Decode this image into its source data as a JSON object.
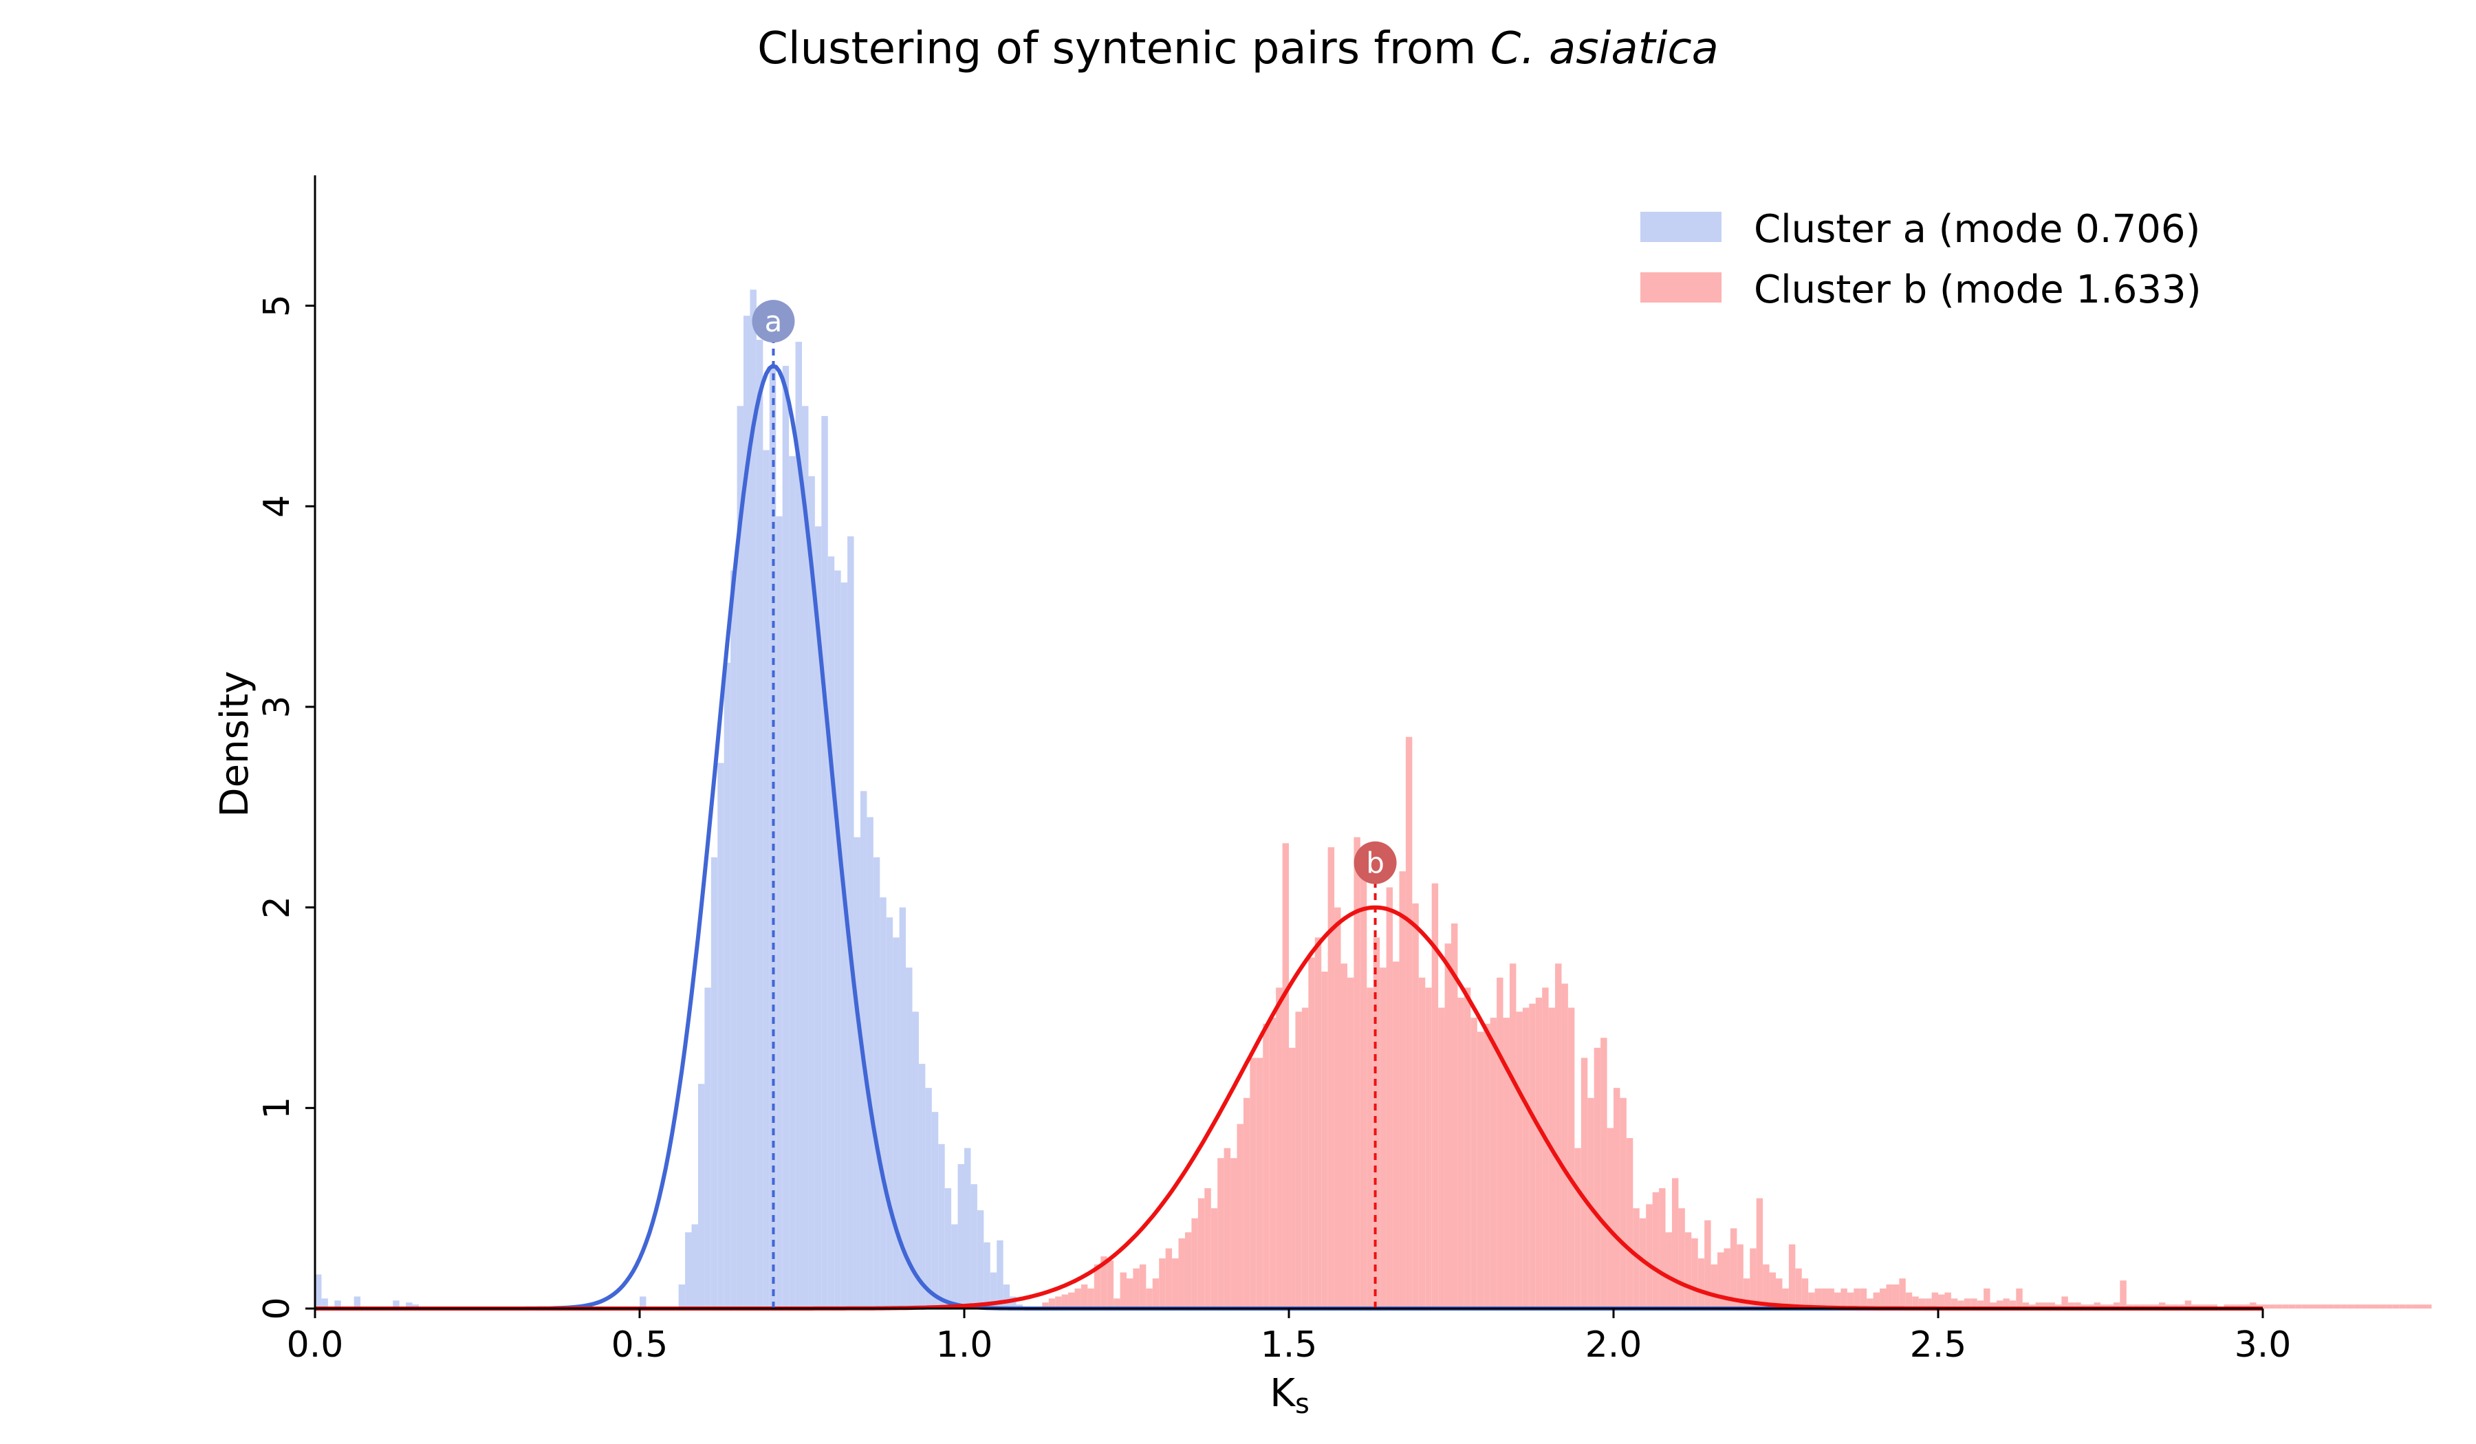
{
  "chart_data": {
    "type": "bar",
    "title": "Clustering of syntenic pairs from ",
    "title_species": "C.  asiatica",
    "xlabel_main": "K",
    "xlabel_sub": "s",
    "ylabel": "Density",
    "xlim": [
      0.0,
      3.0
    ],
    "ylim": [
      0,
      5.65
    ],
    "xticks": [
      "0.0",
      "0.5",
      "1.0",
      "1.5",
      "2.0",
      "2.5",
      "3.0"
    ],
    "yticks": [
      "0",
      "1",
      "2",
      "3",
      "4",
      "5"
    ],
    "grid": false,
    "legend_position": "top-right",
    "legend": [
      "Cluster a (mode 0.706)",
      "Cluster b (mode 1.633)"
    ],
    "colors": {
      "cluster_a_bar": "#c4d1f5",
      "cluster_a_curve": "#4166d5",
      "cluster_a_marker": "#8b98cc",
      "cluster_b_bar": "#fdb3b3",
      "cluster_b_curve": "#ee1111",
      "cluster_b_marker": "#cf5d5d"
    },
    "series": [
      {
        "name": "Cluster a (mode 0.706)",
        "mode": 0.706,
        "marker_label": "a",
        "peak_density": 4.7,
        "curve_sigma": 0.085,
        "histogram": {
          "bin_start": 0.0,
          "bin_width": 0.01,
          "values": [
            0.17,
            0.05,
            0.0,
            0.04,
            0.0,
            0.0,
            0.06,
            0.0,
            0.0,
            0.0,
            0.0,
            0.0,
            0.04,
            0.0,
            0.03,
            0.02,
            0.0,
            0.0,
            0.0,
            0.0,
            0.0,
            0.0,
            0.0,
            0.0,
            0.0,
            0.0,
            0.0,
            0.0,
            0.0,
            0.0,
            0.0,
            0.0,
            0.0,
            0.0,
            0.0,
            0.0,
            0.0,
            0.0,
            0.0,
            0.0,
            0.0,
            0.0,
            0.0,
            0.0,
            0.0,
            0.0,
            0.0,
            0.0,
            0.0,
            0.0,
            0.06,
            0.0,
            0.0,
            0.0,
            0.0,
            0.0,
            0.12,
            0.38,
            0.42,
            1.12,
            1.6,
            2.25,
            2.72,
            3.22,
            3.68,
            4.5,
            4.95,
            5.08,
            4.83,
            4.28,
            4.7,
            3.95,
            4.7,
            4.25,
            4.82,
            4.5,
            4.15,
            3.9,
            4.45,
            3.75,
            3.68,
            3.62,
            3.85,
            2.35,
            2.58,
            2.45,
            2.25,
            2.05,
            1.95,
            1.85,
            2.0,
            1.7,
            1.48,
            1.22,
            1.1,
            0.98,
            0.82,
            0.6,
            0.42,
            0.72,
            0.8,
            0.62,
            0.49,
            0.33,
            0.18,
            0.34,
            0.12,
            0.06,
            0.02
          ]
        }
      },
      {
        "name": "Cluster b (mode 1.633)",
        "mode": 1.633,
        "marker_label": "b",
        "peak_density": 2.0,
        "curve_sigma": 0.2,
        "histogram": {
          "bin_start": 1.12,
          "bin_width": 0.01,
          "values": [
            0.03,
            0.05,
            0.06,
            0.07,
            0.08,
            0.1,
            0.12,
            0.1,
            0.22,
            0.26,
            0.24,
            0.05,
            0.18,
            0.15,
            0.2,
            0.22,
            0.1,
            0.15,
            0.25,
            0.3,
            0.25,
            0.35,
            0.38,
            0.45,
            0.55,
            0.6,
            0.5,
            0.75,
            0.8,
            0.75,
            0.92,
            1.05,
            1.25,
            1.25,
            1.42,
            1.45,
            1.6,
            2.32,
            1.3,
            1.48,
            1.5,
            1.75,
            1.85,
            1.68,
            2.3,
            2.0,
            1.72,
            1.65,
            2.35,
            2.15,
            1.6,
            1.85,
            1.7,
            2.1,
            1.73,
            2.18,
            2.85,
            2.02,
            1.65,
            1.6,
            2.12,
            1.5,
            1.82,
            1.92,
            1.55,
            1.6,
            1.45,
            1.38,
            1.42,
            1.45,
            1.65,
            1.45,
            1.72,
            1.48,
            1.5,
            1.52,
            1.55,
            1.6,
            1.5,
            1.72,
            1.62,
            1.5,
            0.8,
            1.25,
            1.05,
            1.3,
            1.35,
            0.9,
            1.1,
            1.05,
            0.85,
            0.5,
            0.45,
            0.52,
            0.58,
            0.6,
            0.38,
            0.65,
            0.5,
            0.38,
            0.35,
            0.25,
            0.44,
            0.22,
            0.28,
            0.3,
            0.4,
            0.32,
            0.15,
            0.3,
            0.55,
            0.22,
            0.18,
            0.15,
            0.1,
            0.32,
            0.2,
            0.15,
            0.08,
            0.1,
            0.1,
            0.1,
            0.08,
            0.1,
            0.08,
            0.1,
            0.1,
            0.05,
            0.08,
            0.1,
            0.12,
            0.12,
            0.15,
            0.08,
            0.06,
            0.05,
            0.05,
            0.08,
            0.07,
            0.08,
            0.05,
            0.04,
            0.05,
            0.05,
            0.04,
            0.1,
            0.03,
            0.04,
            0.05,
            0.04,
            0.1,
            0.03,
            0.02,
            0.03,
            0.03,
            0.03,
            0.02,
            0.06,
            0.03,
            0.03,
            0.02,
            0.02,
            0.03,
            0.02,
            0.02,
            0.03,
            0.14,
            0.02,
            0.02,
            0.02,
            0.02,
            0.02,
            0.03,
            0.02,
            0.02,
            0.02,
            0.04,
            0.02,
            0.02,
            0.02,
            0.02,
            0.01,
            0.02,
            0.02,
            0.02,
            0.02,
            0.03,
            0.02,
            0.02,
            0.02,
            0.02,
            0.02,
            0.02,
            0.02,
            0.02,
            0.02,
            0.02,
            0.02,
            0.02,
            0.02,
            0.02,
            0.02,
            0.02,
            0.02,
            0.02,
            0.02,
            0.02,
            0.02,
            0.02,
            0.02,
            0.02,
            0.02,
            0.02,
            0.02
          ]
        }
      }
    ]
  }
}
